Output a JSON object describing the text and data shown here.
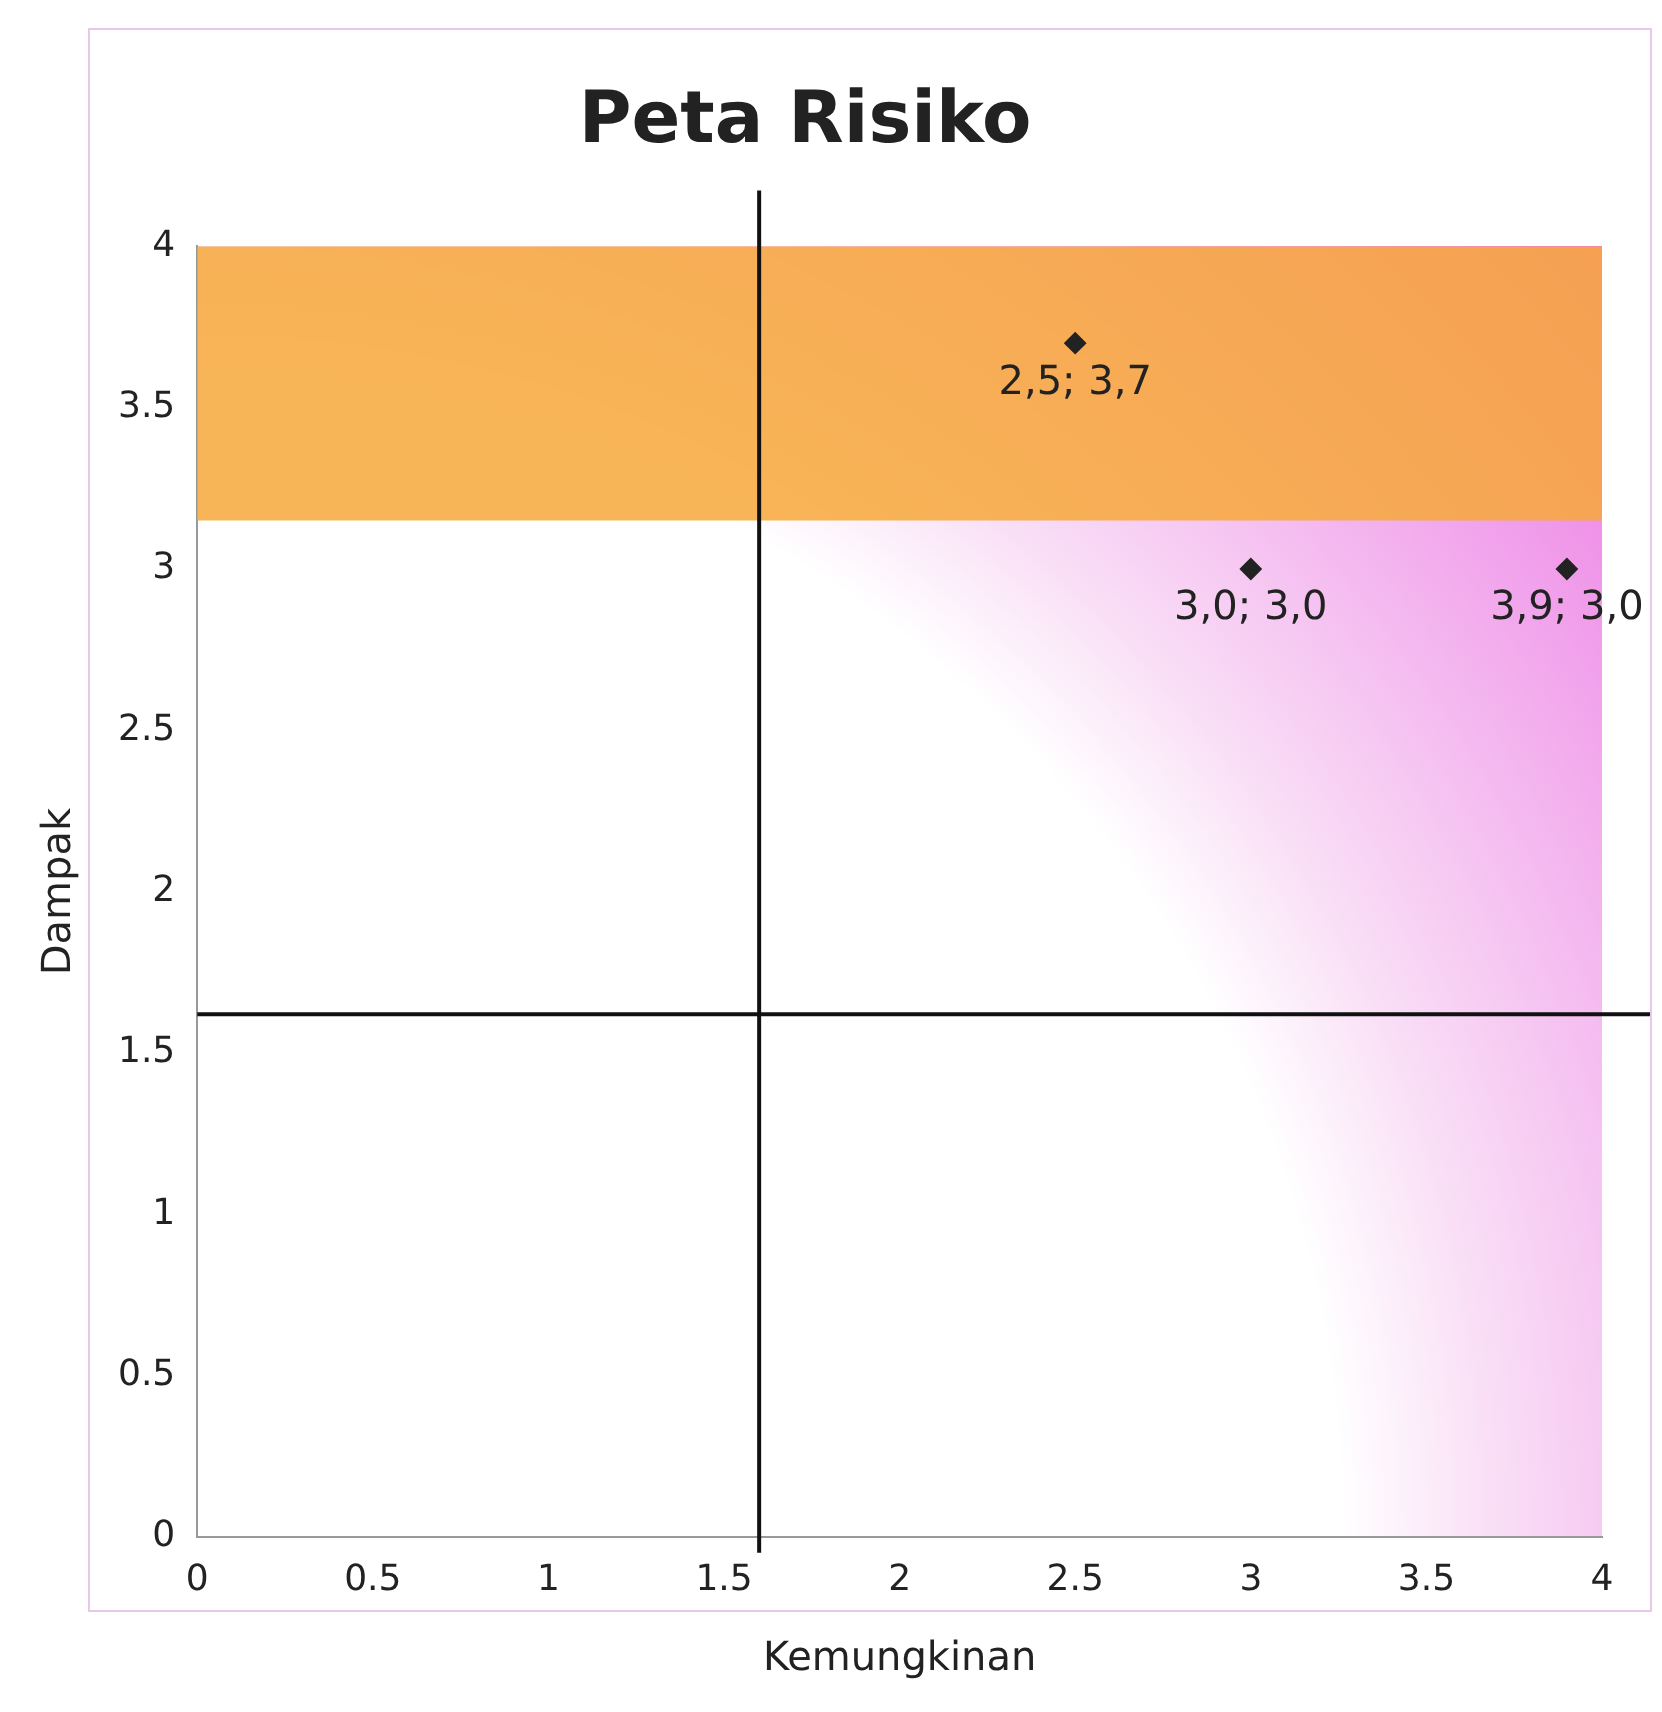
{
  "chart_data": {
    "type": "scatter",
    "title": "Peta Risiko",
    "xlabel": "Kemungkinan",
    "ylabel": "Dampak",
    "x": [
      2.5,
      3,
      3.9
    ],
    "values": [
      3.7,
      3,
      3
    ],
    "value_labels": [
      "2,5; 3,7",
      "3,0; 3,0",
      "3,9; 3,0"
    ],
    "color": "#222222",
    "marker": "diamond",
    "xlim": [
      0,
      4
    ],
    "ylim": [
      0,
      4
    ],
    "xticks": [
      0,
      0.5,
      1,
      1.5,
      2,
      2.5,
      3,
      3.5,
      4
    ],
    "yticks": [
      0,
      0.5,
      1,
      1.5,
      2,
      2.5,
      3,
      3.5,
      4
    ],
    "grid": false,
    "legend": false,
    "ref_lines": [
      {
        "axis": "x",
        "value": 1.6,
        "color": "#111111"
      },
      {
        "axis": "y",
        "value": 1.62,
        "color": "#111111"
      }
    ],
    "bands": [
      {
        "axis": "y",
        "from": 3.15,
        "to": 4,
        "color": "#f7a83a"
      }
    ]
  }
}
